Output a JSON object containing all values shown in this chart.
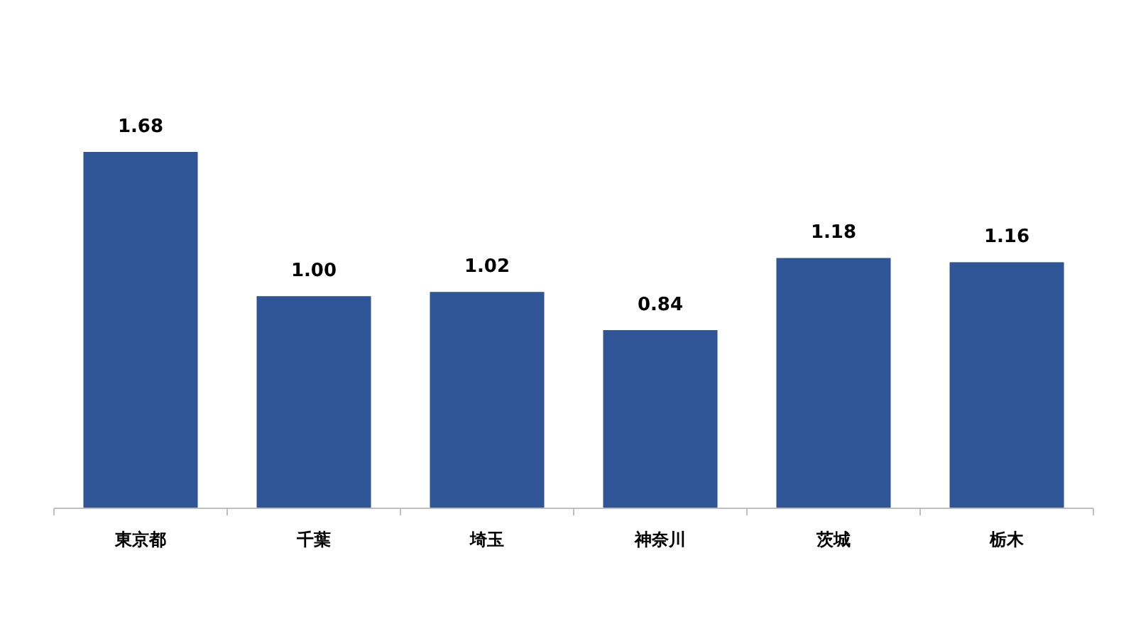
{
  "chart_data": {
    "type": "bar",
    "categories": [
      "東京都",
      "千葉",
      "埼玉",
      "神奈川",
      "茨城",
      "栃木"
    ],
    "values": [
      1.68,
      1.0,
      1.02,
      0.84,
      1.18,
      1.16
    ],
    "value_labels": [
      "1.68",
      "1.00",
      "1.02",
      "0.84",
      "1.18",
      "1.16"
    ],
    "color": "#2f5597"
  }
}
